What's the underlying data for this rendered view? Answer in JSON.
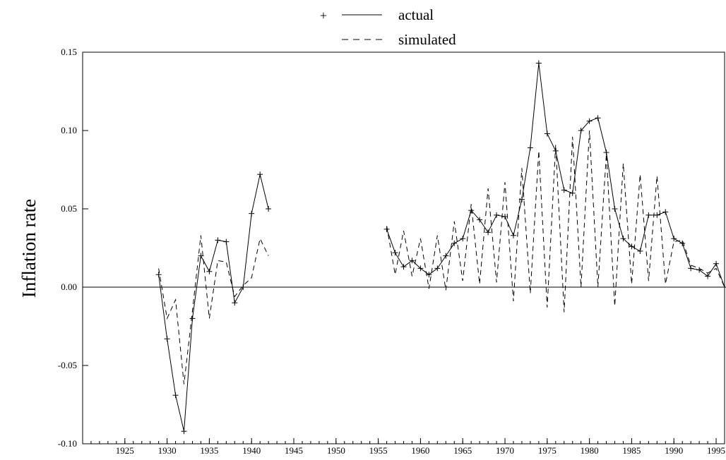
{
  "chart_data": {
    "type": "line",
    "title": "",
    "xlabel": "",
    "ylabel": "Inflation rate",
    "xlim": [
      1920,
      1996
    ],
    "ylim": [
      -0.1,
      0.15
    ],
    "x_ticks": [
      1925,
      1930,
      1935,
      1940,
      1945,
      1950,
      1955,
      1960,
      1965,
      1970,
      1975,
      1980,
      1985,
      1990,
      1995
    ],
    "x_tick_labels": [
      "1925",
      "1930",
      "1935",
      "1940",
      "1945",
      "1950",
      "1955",
      "1960",
      "1965",
      "1970",
      "1975",
      "1980",
      "1985",
      "1990",
      "1995"
    ],
    "y_ticks": [
      -0.1,
      -0.05,
      0.0,
      0.05,
      0.1,
      0.15
    ],
    "y_tick_labels": [
      "-0.10",
      "-0.05",
      "0.00",
      "0.05",
      "0.10",
      "0.15"
    ],
    "grid": false,
    "legend": {
      "placement": "top-center"
    },
    "zero_line": true,
    "series": [
      {
        "name": "actual",
        "style": "solid-with-plus-markers",
        "color": "#000000",
        "segments": [
          {
            "x": [
              1929,
              1930,
              1931,
              1932,
              1933,
              1934,
              1935,
              1936,
              1937,
              1938,
              1939,
              1940,
              1941,
              1942
            ],
            "y": [
              0.008,
              -0.033,
              -0.069,
              -0.092,
              -0.02,
              0.02,
              0.01,
              0.03,
              0.029,
              -0.01,
              0.0,
              0.047,
              0.072,
              0.05
            ]
          },
          {
            "x": [
              1956,
              1957,
              1958,
              1959,
              1960,
              1961,
              1962,
              1963,
              1964,
              1965,
              1966,
              1967,
              1968,
              1969,
              1970,
              1971,
              1972,
              1973,
              1974,
              1975,
              1976,
              1977,
              1978,
              1979,
              1980,
              1981,
              1982,
              1983,
              1984,
              1985,
              1986,
              1987,
              1988,
              1989,
              1990,
              1991,
              1992,
              1993,
              1994,
              1995,
              1996
            ],
            "y": [
              0.037,
              0.022,
              0.013,
              0.017,
              0.012,
              0.008,
              0.012,
              0.02,
              0.028,
              0.031,
              0.049,
              0.043,
              0.035,
              0.046,
              0.045,
              0.033,
              0.056,
              0.089,
              0.143,
              0.098,
              0.087,
              0.062,
              0.06,
              0.1,
              0.106,
              0.108,
              0.086,
              0.05,
              0.031,
              0.026,
              0.023,
              0.046,
              0.046,
              0.048,
              0.031,
              0.028,
              0.012,
              0.011,
              0.007,
              0.015,
              0.0
            ]
          }
        ]
      },
      {
        "name": "simulated",
        "style": "dashed",
        "color": "#000000",
        "segments": [
          {
            "x": [
              1929,
              1930,
              1931,
              1932,
              1933,
              1934,
              1935,
              1936,
              1937,
              1938,
              1939,
              1940,
              1941,
              1942
            ],
            "y": [
              0.012,
              -0.02,
              -0.008,
              -0.062,
              -0.015,
              0.033,
              -0.02,
              0.017,
              0.016,
              -0.006,
              0.001,
              0.006,
              0.031,
              0.02
            ]
          },
          {
            "x": [
              1956,
              1957,
              1958,
              1959,
              1960,
              1961,
              1962,
              1963,
              1964,
              1965,
              1966,
              1967,
              1968,
              1969,
              1970,
              1971,
              1972,
              1973,
              1974,
              1975,
              1976,
              1977,
              1978,
              1979,
              1980,
              1981,
              1982,
              1983,
              1984,
              1985,
              1986,
              1987,
              1988,
              1989,
              1990,
              1991,
              1992,
              1993,
              1994,
              1995,
              1996
            ],
            "y": [
              0.039,
              0.008,
              0.036,
              0.007,
              0.031,
              -0.001,
              0.033,
              -0.002,
              0.042,
              0.004,
              0.053,
              0.002,
              0.063,
              0.003,
              0.067,
              -0.009,
              0.076,
              -0.004,
              0.087,
              -0.013,
              0.091,
              -0.016,
              0.096,
              0.0,
              0.1,
              0.0,
              0.085,
              -0.012,
              0.079,
              0.002,
              0.072,
              0.004,
              0.071,
              0.002,
              0.029,
              0.03,
              0.014,
              0.012,
              0.009,
              0.012,
              0.0
            ]
          }
        ]
      }
    ]
  }
}
